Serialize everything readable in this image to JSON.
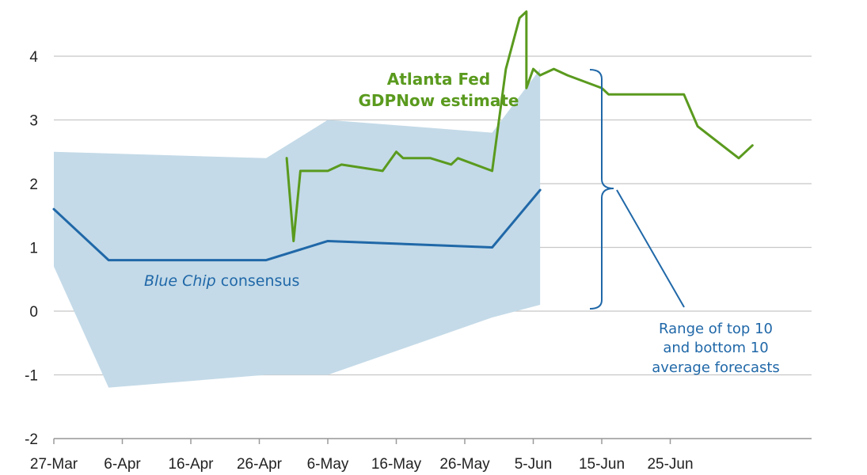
{
  "chart_data": {
    "type": "line",
    "title": "",
    "xlabel": "",
    "ylabel": "",
    "ylim": [
      -2,
      4.75
    ],
    "grid": true,
    "x_ticks": [
      "27-Mar",
      "6-Apr",
      "16-Apr",
      "26-Apr",
      "6-May",
      "16-May",
      "26-May",
      "5-Jun",
      "15-Jun",
      "25-Jun"
    ],
    "y_ticks": [
      "-2",
      "-1",
      "0",
      "1",
      "2",
      "3",
      "4"
    ],
    "series": [
      {
        "name": "Atlanta Fed GDPNow estimate",
        "color": "#5a9a1e",
        "points": [
          [
            "2018-04-30",
            2.4
          ],
          [
            "2018-05-01",
            1.1
          ],
          [
            "2018-05-02",
            2.2
          ],
          [
            "2018-05-06",
            2.2
          ],
          [
            "2018-05-08",
            2.3
          ],
          [
            "2018-05-14",
            2.2
          ],
          [
            "2018-05-16",
            2.5
          ],
          [
            "2018-05-17",
            2.4
          ],
          [
            "2018-05-21",
            2.4
          ],
          [
            "2018-05-24",
            2.3
          ],
          [
            "2018-05-25",
            2.4
          ],
          [
            "2018-05-30",
            2.2
          ],
          [
            "2018-06-01",
            3.8
          ],
          [
            "2018-06-03",
            4.6
          ],
          [
            "2018-06-04",
            4.7
          ],
          [
            "2018-06-04",
            3.5
          ],
          [
            "2018-06-05",
            3.8
          ],
          [
            "2018-06-06",
            3.7
          ],
          [
            "2018-06-08",
            3.8
          ],
          [
            "2018-06-10",
            3.7
          ],
          [
            "2018-06-15",
            3.5
          ],
          [
            "2018-06-16",
            3.4
          ],
          [
            "2018-06-27",
            3.4
          ],
          [
            "2018-06-29",
            2.9
          ],
          [
            "2018-07-05",
            2.4
          ],
          [
            "2018-07-07",
            2.6
          ]
        ]
      },
      {
        "name": "Blue Chip consensus",
        "color": "#2068a8",
        "points": [
          [
            "2018-03-27",
            1.6
          ],
          [
            "2018-04-04",
            0.8
          ],
          [
            "2018-04-27",
            0.8
          ],
          [
            "2018-05-06",
            1.1
          ],
          [
            "2018-05-30",
            1.0
          ],
          [
            "2018-06-06",
            1.9
          ]
        ]
      }
    ],
    "range_band": {
      "color": "#c4dae8",
      "upper": [
        [
          "2018-03-27",
          2.5
        ],
        [
          "2018-04-27",
          2.4
        ],
        [
          "2018-05-06",
          3.0
        ],
        [
          "2018-05-30",
          2.8
        ],
        [
          "2018-06-06",
          3.8
        ]
      ],
      "lower": [
        [
          "2018-03-27",
          0.7
        ],
        [
          "2018-04-04",
          -1.2
        ],
        [
          "2018-04-27",
          -1.0
        ],
        [
          "2018-05-06",
          -1.0
        ],
        [
          "2018-05-30",
          -0.1
        ],
        [
          "2018-06-06",
          0.1
        ]
      ]
    },
    "annotations": {
      "gdpnow_line1": "Atlanta Fed",
      "gdpnow_line2": "GDPNow estimate",
      "bluechip_italic": "Blue Chip",
      "bluechip_rest": " consensus",
      "range_line1": "Range of top 10",
      "range_line2": "and bottom 10",
      "range_line3": "average forecasts"
    }
  }
}
